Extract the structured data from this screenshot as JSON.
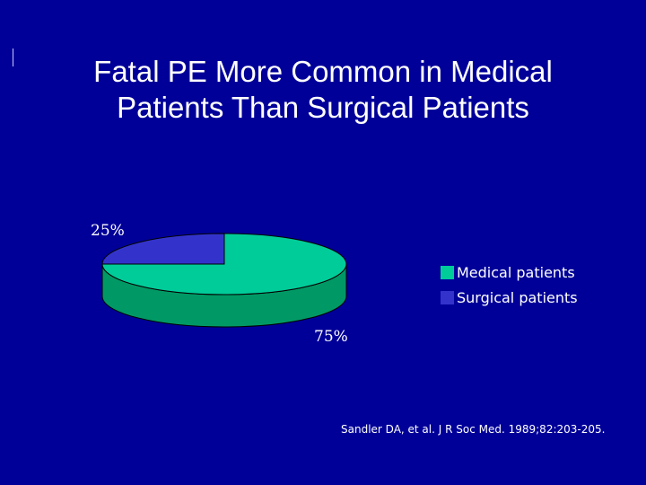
{
  "slide": {
    "title_line1": "Fatal PE More Common in Medical",
    "title_line2": "Patients Than Surgical Patients",
    "citation": "Sandler DA, et al. J R Soc Med. 1989;82:203-205."
  },
  "colors": {
    "background": "#000099",
    "medical": "#00CC99",
    "medical_side": "#009966",
    "surgical": "#3333CC",
    "surgical_side": "#1F1F99"
  },
  "chart_data": {
    "type": "pie",
    "style": "3d",
    "title": "Fatal PE More Common in Medical Patients Than Surgical Patients",
    "slices": [
      {
        "name": "Medical patients",
        "value": 75,
        "label": "75%"
      },
      {
        "name": "Surgical patients",
        "value": 25,
        "label": "25%"
      }
    ],
    "legend": {
      "placement": "right",
      "items": [
        "Medical patients",
        "Surgical patients"
      ]
    }
  }
}
